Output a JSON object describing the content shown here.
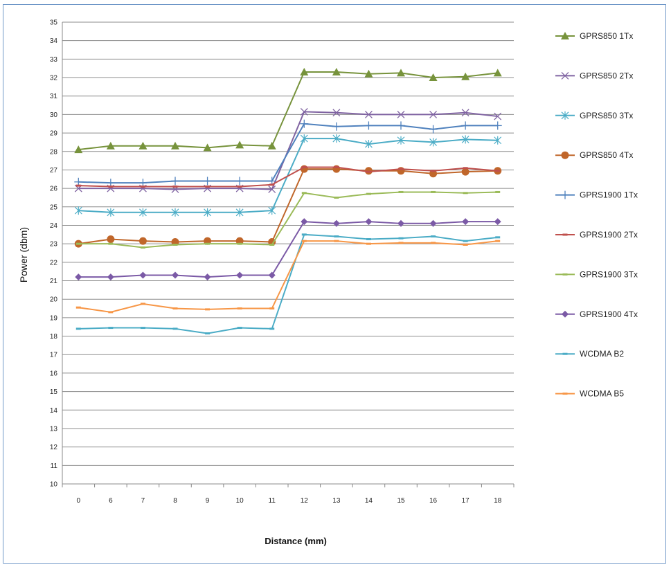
{
  "chart_data": {
    "type": "line",
    "title": "",
    "xlabel": "Distance (mm)",
    "ylabel": "Power (dbm)",
    "categories": [
      "0",
      "6",
      "7",
      "8",
      "9",
      "10",
      "11",
      "12",
      "13",
      "14",
      "15",
      "16",
      "17",
      "18"
    ],
    "ylim": [
      10,
      35
    ],
    "yticks": [
      10,
      11,
      12,
      13,
      14,
      15,
      16,
      17,
      18,
      19,
      20,
      21,
      22,
      23,
      24,
      25,
      26,
      27,
      28,
      29,
      30,
      31,
      32,
      33,
      34,
      35
    ],
    "grid": true,
    "legend": "right",
    "series": [
      {
        "name": "GPRS850 1Tx",
        "color": "#77933c",
        "marker": "triangle",
        "values": [
          28.1,
          28.3,
          28.3,
          28.3,
          28.2,
          28.35,
          28.3,
          32.3,
          32.3,
          32.2,
          32.25,
          32.0,
          32.05,
          32.25
        ]
      },
      {
        "name": "GPRS850 2Tx",
        "color": "#8064a2",
        "marker": "x",
        "values": [
          26.0,
          26.0,
          26.0,
          25.95,
          26.0,
          26.0,
          25.95,
          30.15,
          30.1,
          30.0,
          30.0,
          30.0,
          30.1,
          29.9
        ]
      },
      {
        "name": "GPRS850 3Tx",
        "color": "#4bacc6",
        "marker": "asterisk",
        "values": [
          24.8,
          24.7,
          24.7,
          24.7,
          24.7,
          24.7,
          24.8,
          28.7,
          28.7,
          28.4,
          28.6,
          28.5,
          28.65,
          28.6
        ]
      },
      {
        "name": "GPRS850 4Tx",
        "color": "#c0662a",
        "marker": "circle",
        "values": [
          23.0,
          23.25,
          23.15,
          23.1,
          23.15,
          23.15,
          23.1,
          27.05,
          27.05,
          26.95,
          26.95,
          26.8,
          26.9,
          26.95
        ]
      },
      {
        "name": "GPRS1900 1Tx",
        "color": "#4f81bd",
        "marker": "plus",
        "values": [
          26.35,
          26.3,
          26.3,
          26.4,
          26.4,
          26.4,
          26.4,
          29.5,
          29.35,
          29.4,
          29.4,
          29.2,
          29.4,
          29.4
        ]
      },
      {
        "name": "GPRS1900 2Tx",
        "color": "#c0504d",
        "marker": "dash",
        "values": [
          26.15,
          26.1,
          26.1,
          26.1,
          26.1,
          26.1,
          26.2,
          27.15,
          27.15,
          26.9,
          27.05,
          26.95,
          27.1,
          26.95
        ]
      },
      {
        "name": "GPRS1900 3Tx",
        "color": "#9bbb59",
        "marker": "dash",
        "values": [
          23.0,
          23.0,
          22.8,
          22.95,
          23.0,
          23.0,
          22.95,
          25.75,
          25.5,
          25.7,
          25.8,
          25.8,
          25.75,
          25.8
        ]
      },
      {
        "name": "GPRS1900 4Tx",
        "color": "#7b5aa6",
        "marker": "diamond",
        "values": [
          21.2,
          21.2,
          21.3,
          21.3,
          21.2,
          21.3,
          21.3,
          24.2,
          24.1,
          24.2,
          24.1,
          24.1,
          24.2,
          24.2
        ]
      },
      {
        "name": "WCDMA B2",
        "color": "#4bacc6",
        "marker": "dash",
        "values": [
          18.4,
          18.45,
          18.45,
          18.4,
          18.15,
          18.45,
          18.4,
          23.5,
          23.4,
          23.25,
          23.3,
          23.4,
          23.15,
          23.35
        ]
      },
      {
        "name": "WCDMA B5",
        "color": "#f79646",
        "marker": "dash",
        "values": [
          19.55,
          19.3,
          19.75,
          19.5,
          19.45,
          19.5,
          19.5,
          23.15,
          23.15,
          23.0,
          23.05,
          23.05,
          22.95,
          23.15
        ]
      }
    ]
  }
}
